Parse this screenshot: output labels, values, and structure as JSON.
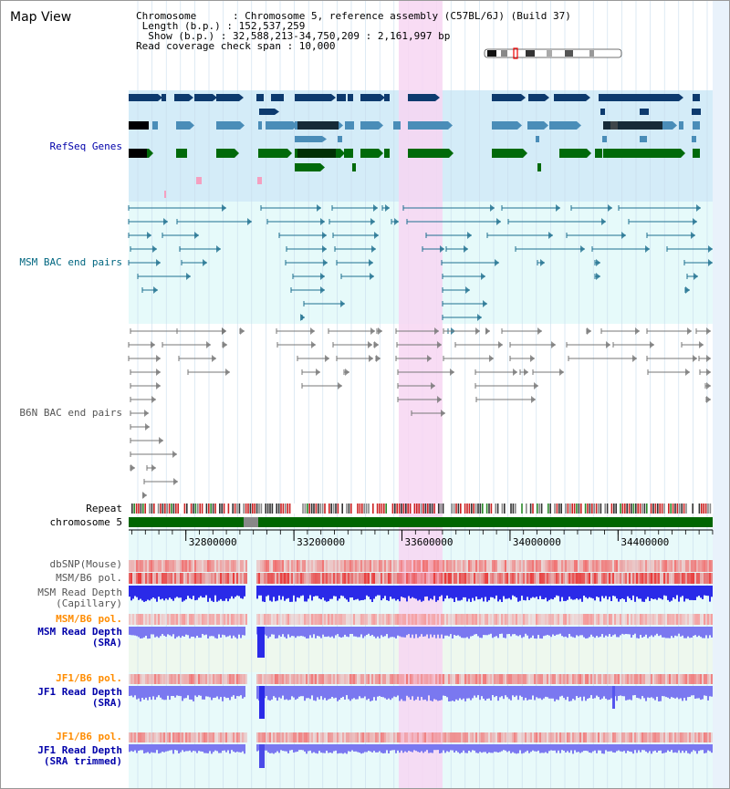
{
  "header": {
    "title": "Map View",
    "info_lines": [
      "Chromosome      : Chromosome 5, reference assembly (C57BL/6J) (Build 37)",
      " Length (b.p.) : 152,537,259",
      "  Show (b.p.) : 32,588,213-34,750,209 : 2,161,997 bp",
      "Read coverage check span : 10,000"
    ]
  },
  "view": {
    "start_bp": 32588213,
    "end_bp": 34750209,
    "highlight_start_bp": 33588000,
    "highlight_end_bp": 33750000
  },
  "tracks": {
    "refseq": {
      "label": "RefSeq Genes",
      "color": "#0000aa"
    },
    "msm_bac": {
      "label": "MSM BAC end pairs",
      "color": "#006680"
    },
    "b6n_bac": {
      "label": "B6N BAC end pairs",
      "color": "#555555"
    },
    "repeat": {
      "label": "Repeat"
    },
    "chromosome": {
      "label": "chromosome 5"
    },
    "dbsnp": {
      "label": "dbSNP(Mouse)"
    },
    "msm_pol": {
      "label": "MSM/B6 pol."
    },
    "msm_depth_cap": {
      "label": "MSM Read Depth",
      "label2": "(Capillary)"
    },
    "msm_pol2": {
      "label": "MSM/B6 pol.",
      "color": "#ff8c00"
    },
    "msm_depth_sra": {
      "label": "MSM Read Depth",
      "label2": "(SRA)",
      "color": "#0000aa"
    },
    "jf1_pol": {
      "label": "JF1/B6 pol.",
      "color": "#ff8c00"
    },
    "jf1_depth_sra": {
      "label": "JF1 Read Depth",
      "label2": "(SRA)",
      "color": "#0000aa"
    },
    "jf1_pol2": {
      "label": "JF1/B6 pol.",
      "color": "#ff8c00"
    },
    "jf1_depth_trim": {
      "label": "JF1 Read Depth",
      "label2": "(SRA trimmed)",
      "color": "#0000aa"
    }
  },
  "axis": {
    "ticks": [
      "32800000",
      "33200000",
      "33600000",
      "34000000",
      "34400000"
    ],
    "tick_values": [
      32800000,
      33200000,
      33600000,
      34000000,
      34400000
    ]
  },
  "colors": {
    "refseq_bg": "#d4ecf8",
    "bac_bg": "#e6fafa",
    "highlight": "#f7d6f2",
    "grid": "#c8dcec",
    "gene_dark": "#0d3a6e",
    "gene_mid": "#4a8db8",
    "gene_green": "#006a0a",
    "bac_line": "#1f7090",
    "b6n_line": "#777777",
    "chromosome_bar": "#006600",
    "depth_blue": "#2a2ae8",
    "depth_light": "#7a78f0"
  }
}
